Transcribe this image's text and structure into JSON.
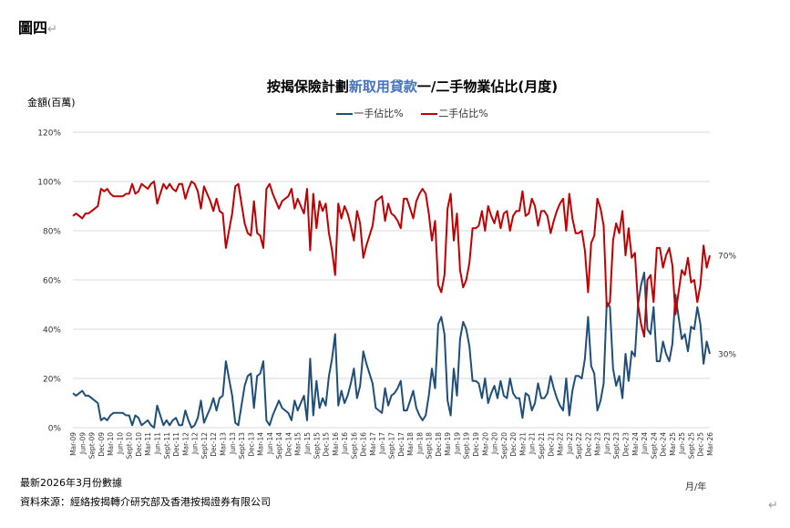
{
  "figure_label": "圖四",
  "return_mark": "↵",
  "title_part1": "按揭保險計劃",
  "title_part2": "新取用貸款",
  "title_part3": "一/二手物業佔比(月度)",
  "y_unit_label": "金額(百萬)",
  "x_unit_label": "月/年",
  "note": "最新2026年3月份數據",
  "source": "資料來源：經絡按揭轉介研究部及香港按揭證券有限公司",
  "chart_data": {
    "type": "line",
    "ylim": [
      0,
      120
    ],
    "yticks": [
      "0%",
      "20%",
      "40%",
      "60%",
      "80%",
      "100%",
      "120%"
    ],
    "grid": true,
    "legend_placement": "top",
    "x_start": "Mar-09",
    "x_end": "Mar-26",
    "frequency": "monthly",
    "xtick_labels": [
      "Mar-09",
      "Jun-09",
      "Sept-09",
      "Dec-09",
      "Mar-10",
      "Jun-10",
      "Sept-10",
      "Dec-10",
      "Mar-11",
      "Jun-11",
      "Sept-11",
      "Dec-11",
      "Mar-12",
      "Jun-12",
      "Sept-12",
      "Dec-12",
      "Mar-13",
      "Jun-13",
      "Sept-13",
      "Dec-13",
      "Mar-14",
      "Jun-14",
      "Sept-14",
      "Dec-14",
      "Mar-15",
      "Jun-15",
      "Sept-15",
      "Dec-15",
      "Mar-16",
      "Jun-16",
      "Sept-16",
      "Dec-16",
      "Mar-17",
      "Jun-17",
      "Sept-17",
      "Dec-17",
      "Mar-18",
      "Jun-18",
      "Sept-18",
      "Dec-18",
      "Mar-19",
      "Jun-19",
      "Sept-19",
      "Dec-19",
      "Mar-20",
      "Jun-20",
      "Sept-20",
      "Dec-20",
      "Mar-21",
      "Jun-21",
      "Sept-21",
      "Dec-21",
      "Mar-22",
      "Jun-22",
      "Sept-22",
      "Dec-22",
      "Mar-23",
      "Jun-23",
      "Sept-23",
      "Dec-23",
      "Mar-24",
      "Jun-24",
      "Sept-24",
      "Dec-24",
      "Mar-25",
      "Jun-25",
      "Sept-25",
      "Dec-25",
      "Mar-26"
    ],
    "series": [
      {
        "name": "一手佔比%",
        "color": "#1f4e79",
        "end_label": "30%",
        "values": [
          14,
          13,
          14,
          15,
          13,
          13,
          12,
          11,
          10,
          3,
          4,
          3,
          5,
          6,
          6,
          6,
          6,
          5,
          5,
          1,
          5,
          4,
          1,
          2,
          3,
          1,
          0,
          9,
          5,
          1,
          3,
          1,
          3,
          4,
          1,
          1,
          7,
          3,
          0,
          1,
          4,
          11,
          2,
          5,
          8,
          12,
          7,
          12,
          13,
          27,
          20,
          13,
          2,
          1,
          9,
          17,
          21,
          22,
          8,
          21,
          22,
          27,
          3,
          1,
          5,
          8,
          11,
          8,
          7,
          6,
          3,
          11,
          7,
          10,
          13,
          3,
          28,
          5,
          19,
          8,
          12,
          9,
          21,
          28,
          38,
          9,
          15,
          10,
          13,
          18,
          24,
          12,
          17,
          31,
          26,
          22,
          18,
          8,
          7,
          6,
          16,
          9,
          13,
          14,
          16,
          19,
          7,
          7,
          11,
          15,
          8,
          5,
          3,
          5,
          13,
          24,
          16,
          42,
          45,
          38,
          11,
          5,
          24,
          13,
          36,
          43,
          40,
          33,
          19,
          19,
          18,
          12,
          20,
          10,
          14,
          17,
          12,
          19,
          13,
          12,
          20,
          14,
          12,
          12,
          4,
          14,
          13,
          7,
          10,
          18,
          12,
          12,
          14,
          21,
          16,
          12,
          9,
          7,
          20,
          5,
          15,
          21,
          21,
          20,
          28,
          45,
          25,
          22,
          7,
          11,
          18,
          51,
          49,
          24,
          17,
          21,
          12,
          30,
          19,
          31,
          29,
          50,
          58,
          63,
          40,
          38,
          49,
          27,
          27,
          35,
          30,
          27,
          34,
          54,
          45,
          36,
          38,
          31,
          41,
          40,
          49,
          42,
          26,
          35,
          30
        ]
      },
      {
        "name": "二手佔比%",
        "color": "#c00000",
        "end_label": "70%",
        "values": [
          86,
          87,
          86,
          85,
          87,
          87,
          88,
          89,
          90,
          97,
          96,
          97,
          95,
          94,
          94,
          94,
          94,
          95,
          95,
          99,
          95,
          96,
          99,
          98,
          97,
          99,
          100,
          91,
          95,
          99,
          97,
          99,
          97,
          96,
          99,
          99,
          93,
          97,
          100,
          99,
          96,
          89,
          98,
          95,
          92,
          88,
          93,
          88,
          87,
          73,
          80,
          87,
          98,
          99,
          91,
          83,
          79,
          78,
          92,
          79,
          78,
          73,
          97,
          99,
          95,
          92,
          89,
          92,
          93,
          94,
          97,
          89,
          93,
          90,
          87,
          97,
          72,
          95,
          81,
          92,
          88,
          91,
          79,
          72,
          62,
          91,
          85,
          90,
          87,
          82,
          76,
          88,
          83,
          69,
          74,
          78,
          82,
          92,
          93,
          94,
          84,
          91,
          87,
          86,
          84,
          81,
          93,
          93,
          89,
          85,
          92,
          95,
          97,
          95,
          87,
          76,
          84,
          58,
          55,
          62,
          89,
          95,
          76,
          87,
          64,
          57,
          60,
          67,
          81,
          81,
          82,
          88,
          80,
          90,
          86,
          83,
          88,
          81,
          87,
          88,
          80,
          86,
          88,
          88,
          96,
          86,
          87,
          93,
          90,
          82,
          88,
          88,
          86,
          79,
          84,
          88,
          91,
          93,
          80,
          95,
          85,
          79,
          79,
          80,
          72,
          55,
          75,
          78,
          93,
          89,
          82,
          49,
          51,
          76,
          83,
          79,
          88,
          70,
          81,
          69,
          71,
          50,
          42,
          37,
          60,
          62,
          51,
          73,
          73,
          65,
          70,
          73,
          66,
          46,
          55,
          64,
          62,
          69,
          59,
          60,
          51,
          58,
          74,
          65,
          70
        ]
      }
    ]
  }
}
